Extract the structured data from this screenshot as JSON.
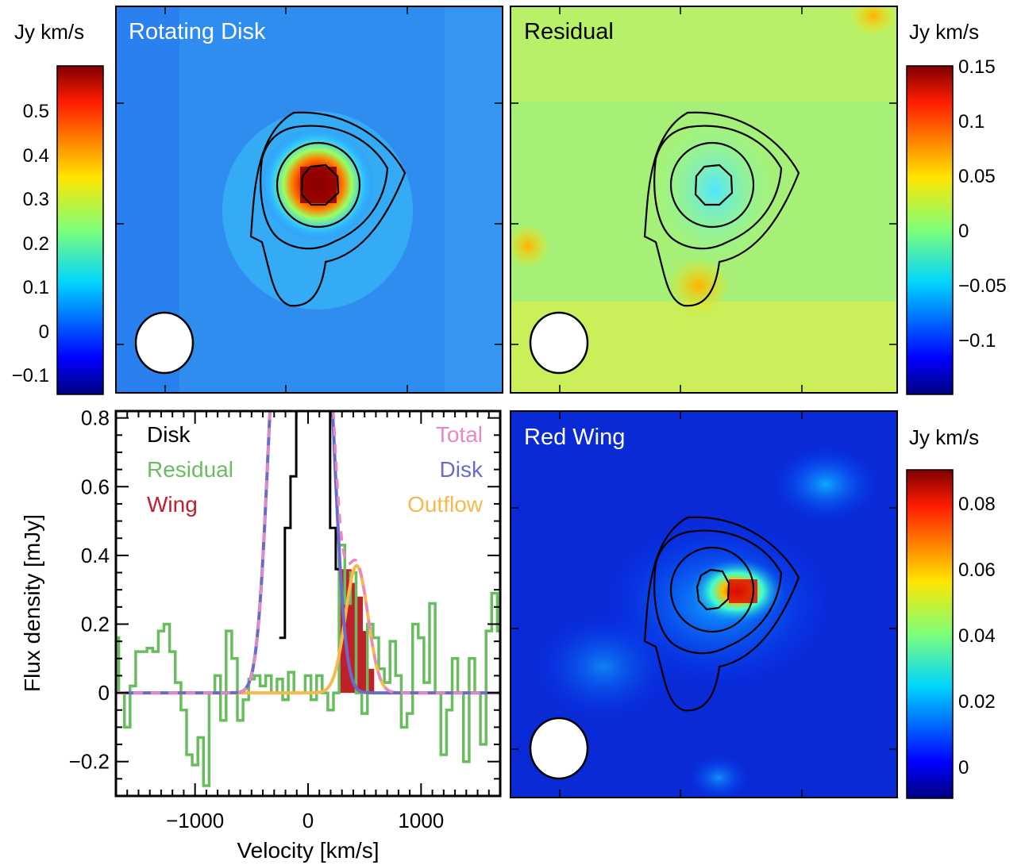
{
  "panels": {
    "rotating_disk": {
      "label": "Rotating Disk",
      "colorbar_unit": "Jy km/s",
      "colorbar_ticks": [
        "0.5",
        "0.4",
        "0.3",
        "0.2",
        "0.1",
        "0",
        "−0.1"
      ],
      "colorbar_range": [
        -0.14,
        0.6
      ]
    },
    "residual": {
      "label": "Residual",
      "colorbar_unit": "Jy km/s",
      "colorbar_ticks": [
        "0.15",
        "0.1",
        "0.05",
        "0",
        "−0.05",
        "−0.1"
      ],
      "colorbar_range": [
        -0.15,
        0.15
      ]
    },
    "red_wing": {
      "label": "Red Wing",
      "colorbar_unit": "Jy km/s",
      "colorbar_ticks": [
        "0.08",
        "0.06",
        "0.04",
        "0.02",
        "0"
      ],
      "colorbar_range": [
        -0.01,
        0.09
      ]
    }
  },
  "colors": {
    "disk": "#000000",
    "residual": "#6abd5e",
    "wing": "#c0202a",
    "total": "#e589c4",
    "disk_model": "#6a6ac8",
    "outflow": "#f7b84e"
  },
  "chart_data": {
    "type": "line",
    "xlabel": "Velocity [km/s]",
    "ylabel": "Flux density [mJy]",
    "xlim": [
      -1700,
      1700
    ],
    "ylim": [
      -0.3,
      0.82
    ],
    "xticks": [
      "−1000",
      "0",
      "1000"
    ],
    "yticks": [
      "0.8",
      "0.6",
      "0.4",
      "0.2",
      "0",
      "−0.2"
    ],
    "legend_left": [
      "Disk",
      "Residual",
      "Wing"
    ],
    "legend_right": [
      "Total",
      "Disk",
      "Outflow"
    ],
    "series": [
      {
        "name": "Disk",
        "step": true,
        "x": [
          -230,
          -180,
          -130,
          -80,
          -30,
          20,
          70,
          120,
          170,
          220,
          270
        ],
        "y": [
          0.16,
          0.48,
          0.63,
          0.82,
          0.82,
          0.82,
          0.82,
          0.82,
          0.82,
          0.48,
          0.36
        ]
      },
      {
        "name": "Residual",
        "step": true,
        "x": [
          -1700,
          -1650,
          -1600,
          -1550,
          -1500,
          -1450,
          -1400,
          -1350,
          -1300,
          -1250,
          -1200,
          -1150,
          -1100,
          -1050,
          -1000,
          -950,
          -900,
          -850,
          -800,
          -750,
          -700,
          -650,
          -600,
          -550,
          -500,
          -450,
          -400,
          -350,
          -300,
          -250,
          -200,
          -150,
          -100,
          -50,
          0,
          50,
          100,
          150,
          200,
          250,
          300,
          350,
          400,
          450,
          500,
          550,
          600,
          650,
          700,
          750,
          800,
          850,
          900,
          950,
          1000,
          1050,
          1100,
          1150,
          1200,
          1250,
          1300,
          1350,
          1400,
          1450,
          1500,
          1550,
          1600,
          1650,
          1700
        ],
        "y": [
          0.16,
          0.0,
          -0.1,
          0.02,
          0.12,
          0.12,
          0.13,
          0.12,
          0.18,
          0.2,
          0.12,
          0.03,
          -0.05,
          -0.18,
          -0.21,
          -0.13,
          -0.27,
          0.0,
          0.05,
          -0.08,
          0.18,
          0.1,
          -0.08,
          -0.02,
          0.04,
          0.05,
          0.02,
          0.05,
          0.0,
          0.04,
          -0.02,
          0.06,
          0.0,
          0.0,
          0.05,
          -0.02,
          0.05,
          0.0,
          -0.05,
          0.0,
          0.43,
          0.26,
          0.35,
          0.0,
          -0.06,
          0.2,
          0.16,
          0.07,
          0.03,
          0.15,
          0.05,
          -0.1,
          -0.06,
          0.2,
          0.16,
          0.03,
          0.26,
          0.0,
          -0.18,
          -0.05,
          0.1,
          0.0,
          -0.2,
          0.1,
          0.0,
          -0.15,
          0.18,
          0.29,
          0.18
        ]
      },
      {
        "name": "Disk",
        "sigma": 100,
        "amp": 1.2,
        "mu": -60,
        "flat": 190
      },
      {
        "name": "Total"
      },
      {
        "name": "Outflow",
        "sigma": 100,
        "amp": 0.37,
        "mu": 430
      },
      {
        "name": "Wing",
        "fill": true,
        "x": [
          310,
          360,
          410,
          460,
          510,
          560,
          610
        ],
        "y": [
          0.36,
          0.36,
          0.32,
          0.28,
          0.18,
          0.07,
          0.0
        ]
      }
    ]
  }
}
